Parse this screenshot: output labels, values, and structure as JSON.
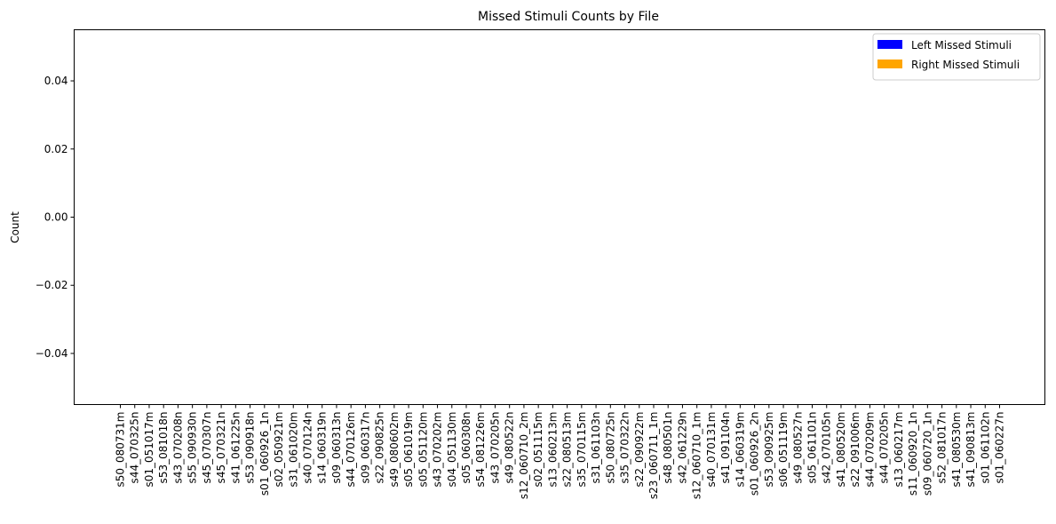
{
  "chart_data": {
    "type": "bar",
    "title": "Missed Stimuli Counts by File",
    "xlabel": "",
    "ylabel": "Count",
    "ylim": [
      -0.055,
      0.055
    ],
    "yticks": [
      "0.04",
      "0.02",
      "0.00",
      "−0.02",
      "−0.04"
    ],
    "ytick_values": [
      0.04,
      0.02,
      0.0,
      -0.02,
      -0.04
    ],
    "grid": false,
    "legend_position": "top-right",
    "categories": [
      "s50_080731m",
      "s44_070325n",
      "s01_051017m",
      "s53_081018n",
      "s43_070208n",
      "s55_090930n",
      "s45_070307n",
      "s45_070321n",
      "s41_061225n",
      "s53_090918n",
      "s01_060926_1n",
      "s02_050921m",
      "s31_061020m",
      "s40_070124n",
      "s14_060319n",
      "s09_060313n",
      "s44_070126m",
      "s09_060317n",
      "s22_090825n",
      "s49_080602m",
      "s05_061019m",
      "s05_051120m",
      "s43_070202m",
      "s04_051130m",
      "s05_060308n",
      "s54_081226m",
      "s43_070205n",
      "s49_080522n",
      "s12_060710_2m",
      "s02_051115m",
      "s13_060213m",
      "s22_080513m",
      "s35_070115m",
      "s31_061103n",
      "s50_080725n",
      "s35_070322n",
      "s22_090922m",
      "s23_060711_1m",
      "s48_080501n",
      "s42_061229n",
      "s12_060710_1m",
      "s40_070131m",
      "s41_091104n",
      "s14_060319m",
      "s01_060926_2n",
      "s53_090925m",
      "s06_051119m",
      "s49_080527n",
      "s05_061101n",
      "s42_070105n",
      "s41_080520m",
      "s22_091006m",
      "s44_070209m",
      "s44_070205n",
      "s13_060217m",
      "s11_060920_1n",
      "s09_060720_1n",
      "s52_081017n",
      "s41_080530m",
      "s41_090813m",
      "s01_061102n",
      "s01_060227n"
    ],
    "series": [
      {
        "name": "Left Missed Stimuli",
        "color": "#0000ff",
        "values": [
          0,
          0,
          0,
          0,
          0,
          0,
          0,
          0,
          0,
          0,
          0,
          0,
          0,
          0,
          0,
          0,
          0,
          0,
          0,
          0,
          0,
          0,
          0,
          0,
          0,
          0,
          0,
          0,
          0,
          0,
          0,
          0,
          0,
          0,
          0,
          0,
          0,
          0,
          0,
          0,
          0,
          0,
          0,
          0,
          0,
          0,
          0,
          0,
          0,
          0,
          0,
          0,
          0,
          0,
          0,
          0,
          0,
          0,
          0,
          0,
          0,
          0
        ]
      },
      {
        "name": "Right Missed Stimuli",
        "color": "#ffa500",
        "values": [
          0,
          0,
          0,
          0,
          0,
          0,
          0,
          0,
          0,
          0,
          0,
          0,
          0,
          0,
          0,
          0,
          0,
          0,
          0,
          0,
          0,
          0,
          0,
          0,
          0,
          0,
          0,
          0,
          0,
          0,
          0,
          0,
          0,
          0,
          0,
          0,
          0,
          0,
          0,
          0,
          0,
          0,
          0,
          0,
          0,
          0,
          0,
          0,
          0,
          0,
          0,
          0,
          0,
          0,
          0,
          0,
          0,
          0,
          0,
          0,
          0,
          0
        ]
      }
    ]
  }
}
